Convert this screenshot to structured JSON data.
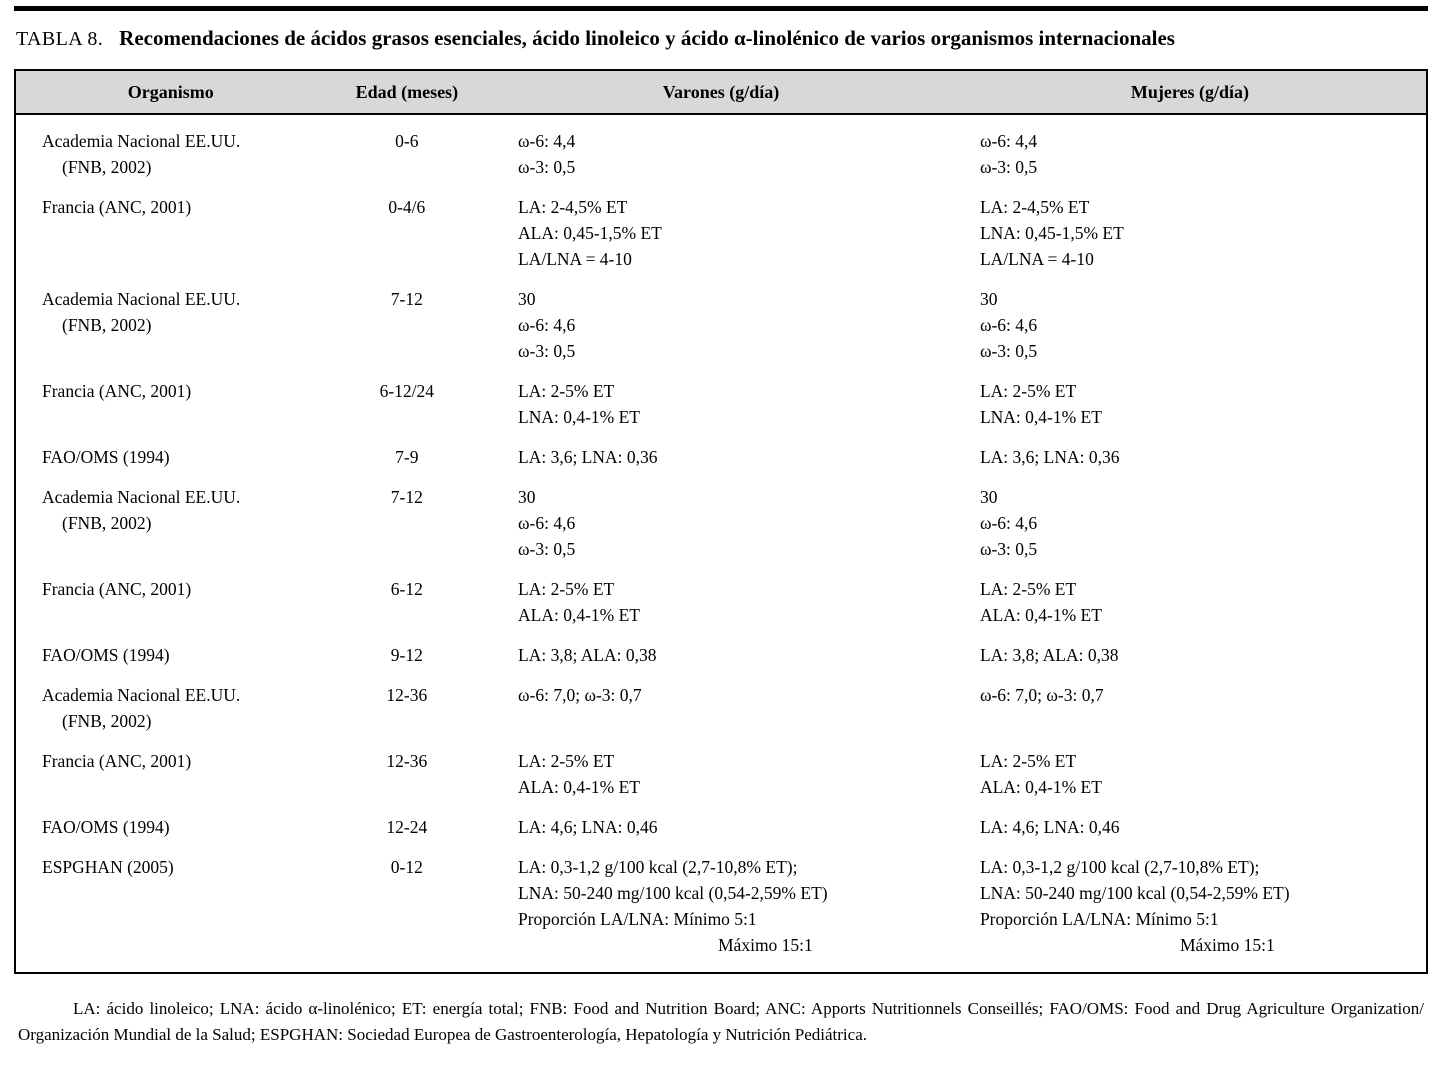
{
  "colors": {
    "header_bg": "#d8d8d8",
    "border": "#000000",
    "text": "#000000"
  },
  "title": {
    "label": "TABLA 8.",
    "text": "Recomendaciones de ácidos grasos esenciales, ácido linoleico y ácido α-linolénico de varios organismos internacionales"
  },
  "table": {
    "headers": [
      "Organismo",
      "Edad (meses)",
      "Varones (g/día)",
      "Mujeres (g/día)"
    ],
    "rows": [
      {
        "organismo": [
          "Academia Nacional EE.UU.",
          "(FNB, 2002)"
        ],
        "edad": "0-6",
        "varones": [
          "ω-6: 4,4",
          "ω-3: 0,5"
        ],
        "mujeres": [
          "ω-6: 4,4",
          "ω-3: 0,5"
        ]
      },
      {
        "organismo": [
          "Francia (ANC, 2001)"
        ],
        "edad": "0-4/6",
        "varones": [
          "LA: 2-4,5% ET",
          "ALA: 0,45-1,5% ET",
          "LA/LNA = 4-10"
        ],
        "mujeres": [
          "LA: 2-4,5% ET",
          "LNA: 0,45-1,5% ET",
          "LA/LNA = 4-10"
        ]
      },
      {
        "organismo": [
          "Academia Nacional EE.UU.",
          "(FNB, 2002)"
        ],
        "edad": "7-12",
        "varones": [
          "30",
          "ω-6: 4,6",
          "ω-3: 0,5"
        ],
        "mujeres": [
          "30",
          "ω-6: 4,6",
          "ω-3: 0,5"
        ]
      },
      {
        "organismo": [
          "Francia (ANC, 2001)"
        ],
        "edad": "6-12/24",
        "varones": [
          "LA: 2-5% ET",
          "LNA: 0,4-1% ET"
        ],
        "mujeres": [
          "LA: 2-5% ET",
          "LNA: 0,4-1% ET"
        ]
      },
      {
        "organismo": [
          "FAO/OMS (1994)"
        ],
        "edad": "7-9",
        "varones": [
          "LA: 3,6; LNA: 0,36"
        ],
        "mujeres": [
          "LA: 3,6; LNA: 0,36"
        ]
      },
      {
        "organismo": [
          "Academia Nacional EE.UU.",
          "(FNB, 2002)"
        ],
        "edad": "7-12",
        "varones": [
          "30",
          "ω-6: 4,6",
          "ω-3: 0,5"
        ],
        "mujeres": [
          "30",
          "ω-6: 4,6",
          "ω-3: 0,5"
        ]
      },
      {
        "organismo": [
          "Francia (ANC, 2001)"
        ],
        "edad": "6-12",
        "varones": [
          "LA: 2-5% ET",
          "ALA: 0,4-1% ET"
        ],
        "mujeres": [
          "LA: 2-5% ET",
          "ALA: 0,4-1% ET"
        ]
      },
      {
        "organismo": [
          "FAO/OMS (1994)"
        ],
        "edad": "9-12",
        "varones": [
          "LA: 3,8; ALA: 0,38"
        ],
        "mujeres": [
          "LA: 3,8; ALA: 0,38"
        ]
      },
      {
        "organismo": [
          "Academia Nacional EE.UU.",
          "(FNB, 2002)"
        ],
        "edad": "12-36",
        "varones": [
          "ω-6: 7,0; ω-3: 0,7"
        ],
        "mujeres": [
          "ω-6: 7,0; ω-3: 0,7"
        ]
      },
      {
        "organismo": [
          "Francia (ANC, 2001)"
        ],
        "edad": "12-36",
        "varones": [
          "LA: 2-5% ET",
          "ALA: 0,4-1% ET"
        ],
        "mujeres": [
          "LA: 2-5% ET",
          "ALA: 0,4-1% ET"
        ]
      },
      {
        "organismo": [
          "FAO/OMS (1994)"
        ],
        "edad": "12-24",
        "varones": [
          "LA: 4,6; LNA: 0,46"
        ],
        "mujeres": [
          "LA: 4,6; LNA: 0,46"
        ]
      },
      {
        "organismo": [
          "ESPGHAN (2005)"
        ],
        "edad": "0-12",
        "varones": [
          "LA: 0,3-1,2 g/100 kcal (2,7-10,8% ET);",
          "LNA: 50-240 mg/100 kcal (0,54-2,59% ET)",
          "Proporción LA/LNA: Mínimo 5:1",
          {
            "text": "Máximo 15:1",
            "indent": true
          }
        ],
        "mujeres": [
          "LA: 0,3-1,2 g/100 kcal (2,7-10,8% ET);",
          "LNA: 50-240 mg/100 kcal (0,54-2,59% ET)",
          "Proporción LA/LNA: Mínimo 5:1",
          {
            "text": "Máximo 15:1",
            "indent": true
          }
        ]
      }
    ]
  },
  "footnote": "LA: ácido linoleico; LNA: ácido α-linolénico; ET: energía total; FNB: Food and Nutrition Board; ANC: Apports Nutritionnels Conseillés; FAO/OMS: Food and Drug Agriculture Organization/ Organización Mundial de la Salud; ESPGHAN: Sociedad Europea de Gastroenterología, Hepatología y Nutrición Pediátrica."
}
